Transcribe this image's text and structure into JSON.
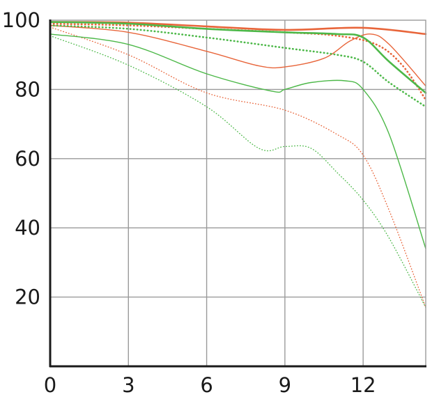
{
  "chart_data": {
    "type": "line",
    "title": "",
    "xlabel": "",
    "ylabel": "",
    "xlim": [
      0,
      14.4
    ],
    "ylim": [
      0,
      100
    ],
    "x_ticks": [
      0,
      3,
      6,
      9,
      12
    ],
    "y_ticks": [
      20,
      40,
      60,
      80,
      100
    ],
    "x_tick_labels": [
      "0",
      "3",
      "6",
      "9",
      "12"
    ],
    "y_tick_labels": [
      "20",
      "40",
      "60",
      "80",
      "100"
    ],
    "grid": true,
    "legend": "none",
    "colors": {
      "orange": "#e8653a",
      "green": "#4cb848",
      "grid": "#9a9a9a",
      "axis": "#1a1a1a"
    },
    "series": [
      {
        "color": "orange",
        "style": "solid",
        "weight": "bold",
        "x": [
          0,
          3,
          6,
          9,
          12,
          14.4
        ],
        "y": [
          99.5,
          99.3,
          98.2,
          97.2,
          97.8,
          96
        ]
      },
      {
        "color": "orange",
        "style": "dotted",
        "weight": "bold",
        "x": [
          0,
          3,
          6,
          9,
          11,
          12.5,
          13.5,
          14.4
        ],
        "y": [
          99,
          98.5,
          97.5,
          96.5,
          95.5,
          93,
          87,
          77
        ]
      },
      {
        "color": "orange",
        "style": "solid",
        "weight": "thin",
        "x": [
          0,
          3,
          6,
          8,
          9,
          10.5,
          11.5,
          12.3,
          13,
          14.4
        ],
        "y": [
          98.5,
          96.5,
          91,
          86.8,
          86.5,
          89,
          94,
          96,
          93,
          81
        ]
      },
      {
        "color": "orange",
        "style": "dotted",
        "weight": "thin",
        "x": [
          0,
          3,
          6,
          9,
          11,
          12,
          13,
          14.4
        ],
        "y": [
          98,
          90,
          79,
          74,
          67,
          61,
          45,
          17
        ]
      },
      {
        "color": "green",
        "style": "solid",
        "weight": "bold",
        "x": [
          0,
          3,
          6,
          9,
          11,
          12,
          13,
          14.4
        ],
        "y": [
          99.5,
          99,
          97.5,
          96.5,
          96,
          95,
          88,
          79
        ]
      },
      {
        "color": "green",
        "style": "dotted",
        "weight": "bold",
        "x": [
          0,
          3,
          6,
          9,
          11,
          12,
          13,
          14.4
        ],
        "y": [
          98.5,
          97.5,
          95,
          92,
          90,
          88,
          82,
          75
        ]
      },
      {
        "color": "green",
        "style": "solid",
        "weight": "thin",
        "x": [
          0,
          3,
          6,
          8.5,
          9,
          10,
          11.3,
          12,
          13,
          14.4
        ],
        "y": [
          96,
          93,
          84.5,
          79.5,
          80,
          82,
          82.5,
          80,
          67,
          34
        ]
      },
      {
        "color": "green",
        "style": "dotted",
        "weight": "thin",
        "x": [
          0,
          3,
          6,
          8,
          9,
          10,
          11,
          12,
          13,
          14.4
        ],
        "y": [
          95.5,
          87,
          75,
          63,
          63.5,
          63,
          56,
          48,
          37,
          17
        ]
      }
    ]
  }
}
